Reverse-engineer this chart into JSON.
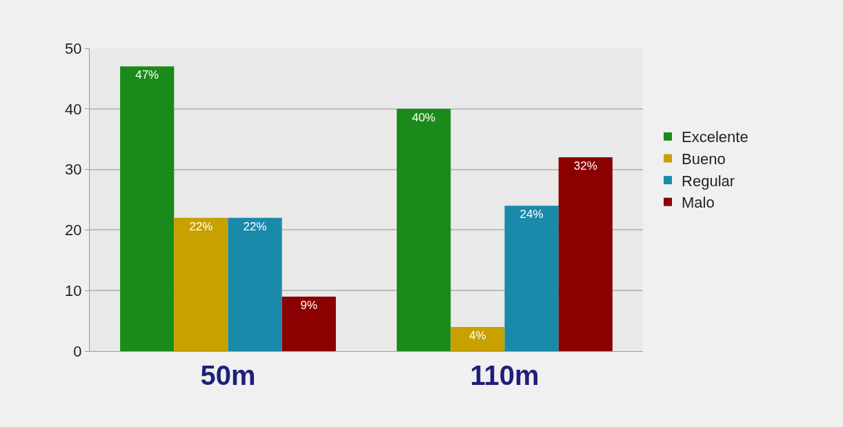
{
  "chart_data": {
    "type": "bar",
    "categories": [
      "50m",
      "110m"
    ],
    "series": [
      {
        "name": "Excelente",
        "color": "#1a8a1a",
        "values": [
          47,
          40
        ],
        "value_labels": [
          "47%",
          "40%"
        ]
      },
      {
        "name": "Bueno",
        "color": "#c8a000",
        "values": [
          22,
          4
        ],
        "value_labels": [
          "22%",
          "4%"
        ]
      },
      {
        "name": "Regular",
        "color": "#1a8aaa",
        "values": [
          22,
          24
        ],
        "value_labels": [
          "22%",
          "24%"
        ]
      },
      {
        "name": "Malo",
        "color": "#8b0000",
        "values": [
          9,
          32
        ],
        "value_labels": [
          "9%",
          "32%"
        ]
      }
    ],
    "ylim": [
      0,
      50
    ],
    "yticks": [
      0,
      10,
      20,
      30,
      40,
      50
    ],
    "grid": "y",
    "legend": "right"
  }
}
